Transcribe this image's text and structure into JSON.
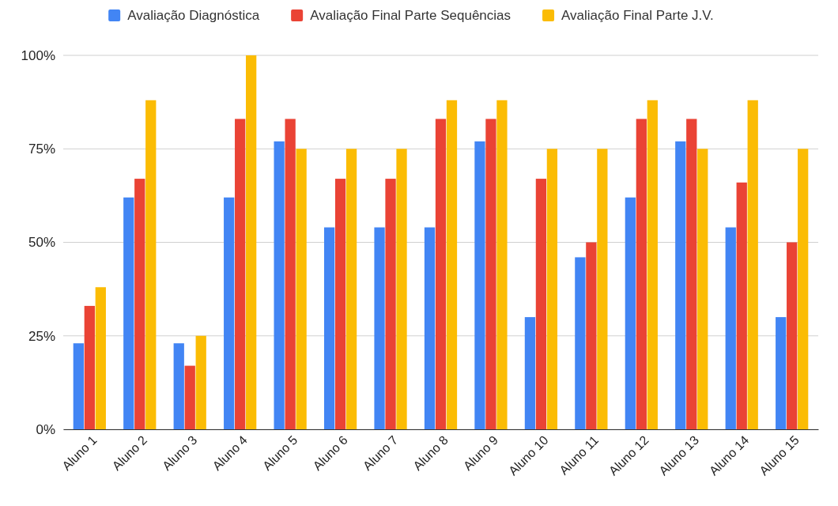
{
  "chart_data": {
    "type": "bar",
    "categories": [
      "Aluno 1",
      "Aluno 2",
      "Aluno 3",
      "Aluno 4",
      "Aluno 5",
      "Aluno 6",
      "Aluno 7",
      "Aluno 8",
      "Aluno 9",
      "Aluno 10",
      "Aluno 11",
      "Aluno 12",
      "Aluno 13",
      "Aluno 14",
      "Aluno 15"
    ],
    "series": [
      {
        "name": "Avaliação Diagnóstica",
        "color": "#4285f4",
        "values": [
          23,
          62,
          23,
          62,
          77,
          54,
          54,
          54,
          77,
          30,
          46,
          62,
          77,
          54,
          30
        ]
      },
      {
        "name": "Avaliação Final Parte Sequências",
        "color": "#ea4335",
        "values": [
          33,
          67,
          17,
          83,
          83,
          67,
          67,
          83,
          83,
          67,
          50,
          83,
          83,
          66,
          50
        ]
      },
      {
        "name": "Avaliação Final Parte J.V.",
        "color": "#fbbc04",
        "values": [
          38,
          88,
          25,
          100,
          75,
          75,
          75,
          88,
          88,
          75,
          75,
          88,
          75,
          88,
          75
        ]
      }
    ],
    "ylim": [
      0,
      100
    ],
    "yticks": [
      {
        "value": 0,
        "label": "0%"
      },
      {
        "value": 25,
        "label": "25%"
      },
      {
        "value": 50,
        "label": "50%"
      },
      {
        "value": 75,
        "label": "75%"
      },
      {
        "value": 100,
        "label": "100%"
      }
    ],
    "grid": "y",
    "legend": "top"
  }
}
